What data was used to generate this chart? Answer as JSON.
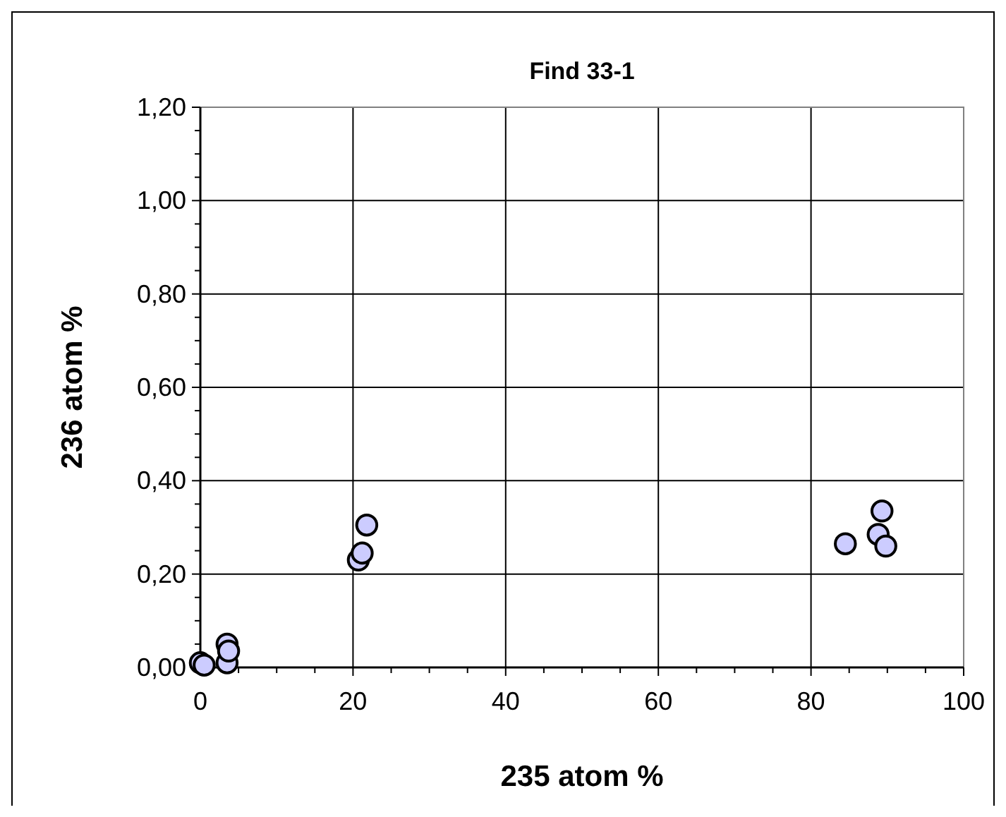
{
  "chart_data": {
    "type": "scatter",
    "title": "Find 33-1",
    "xlabel": "235 atom %",
    "ylabel": "236 atom %",
    "x": [
      0,
      0.5,
      3.5,
      3.5,
      3.7,
      20.7,
      21.2,
      21.8,
      84.5,
      88.8,
      89.3,
      89.8
    ],
    "series": [
      {
        "color": "#ccccff",
        "values": [
          0.01,
          0.005,
          0.05,
          0.01,
          0.035,
          0.23,
          0.245,
          0.305,
          0.265,
          0.285,
          0.335,
          0.26
        ]
      }
    ],
    "xlim": [
      0,
      100
    ],
    "ylim": [
      0,
      1.2
    ],
    "xticks": [
      0,
      {
        "value": 5,
        "label": null
      },
      {
        "value": 10,
        "label": null
      },
      {
        "value": 15,
        "label": null
      },
      20,
      {
        "value": 25,
        "label": null
      },
      {
        "value": 30,
        "label": null
      },
      {
        "value": 35,
        "label": null
      },
      40,
      {
        "value": 45,
        "label": null
      },
      {
        "value": 50,
        "label": null
      },
      {
        "value": 55,
        "label": null
      },
      60,
      {
        "value": 65,
        "label": null
      },
      {
        "value": 70,
        "label": null
      },
      {
        "value": 75,
        "label": null
      },
      80,
      {
        "value": 85,
        "label": null
      },
      {
        "value": 90,
        "label": null
      },
      {
        "value": 95,
        "label": null
      },
      100
    ],
    "yticks": [
      {
        "value": 0,
        "label": "0,00"
      },
      {
        "value": 0.05,
        "label": null
      },
      {
        "value": 0.1,
        "label": null
      },
      {
        "value": 0.15,
        "label": null
      },
      {
        "value": 0.2,
        "label": "0,20"
      },
      {
        "value": 0.25,
        "label": null
      },
      {
        "value": 0.3,
        "label": null
      },
      {
        "value": 0.35,
        "label": null
      },
      {
        "value": 0.4,
        "label": "0,40"
      },
      {
        "value": 0.45,
        "label": null
      },
      {
        "value": 0.5,
        "label": null
      },
      {
        "value": 0.55,
        "label": null
      },
      {
        "value": 0.6,
        "label": "0,60"
      },
      {
        "value": 0.65,
        "label": null
      },
      {
        "value": 0.7,
        "label": null
      },
      {
        "value": 0.75,
        "label": null
      },
      {
        "value": 0.8,
        "label": "0,80"
      },
      {
        "value": 0.85,
        "label": null
      },
      {
        "value": 0.9,
        "label": null
      },
      {
        "value": 0.95,
        "label": null
      },
      {
        "value": 1,
        "label": "1,00"
      },
      {
        "value": 1.05,
        "label": null
      },
      {
        "value": 1.1,
        "label": null
      },
      {
        "value": 1.15,
        "label": null
      },
      {
        "value": 1.2,
        "label": "1,20"
      }
    ],
    "grid": true,
    "marker": "circle"
  }
}
